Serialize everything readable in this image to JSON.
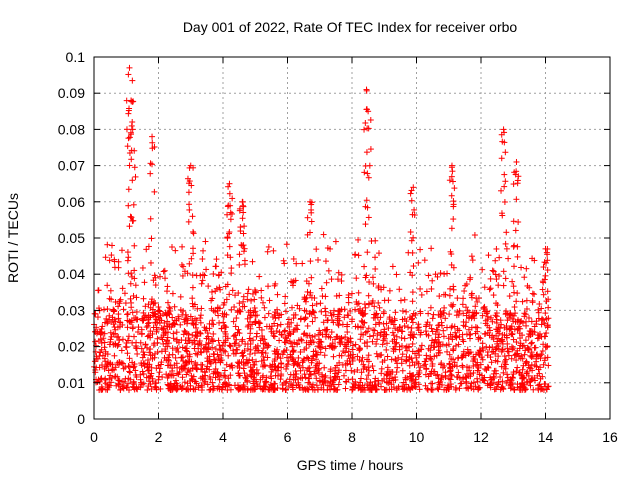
{
  "chart_data": {
    "type": "scatter",
    "title": "Day 001 of 2022, Rate Of TEC Index for receiver orbo",
    "xlabel": "GPS time / hours",
    "ylabel": "ROTI / TECUs",
    "xlim": [
      0,
      16
    ],
    "ylim": [
      0,
      0.1
    ],
    "xticks": [
      "0",
      "2",
      "4",
      "6",
      "8",
      "10",
      "12",
      "14",
      "16"
    ],
    "yticks": [
      "0",
      "0.01",
      "0.02",
      "0.03",
      "0.04",
      "0.05",
      "0.06",
      "0.07",
      "0.08",
      "0.09",
      "0.1"
    ],
    "grid": true,
    "marker": "+",
    "color": "#ff0000",
    "series": [
      {
        "x_range": [
          0.0,
          14.1
        ],
        "baseline_range": [
          0.008,
          0.03
        ],
        "peaks": [
          {
            "x": 1.1,
            "y": 0.097
          },
          {
            "x": 1.15,
            "y": 0.088
          },
          {
            "x": 1.2,
            "y": 0.08
          },
          {
            "x": 1.8,
            "y": 0.078
          },
          {
            "x": 3.0,
            "y": 0.07
          },
          {
            "x": 4.2,
            "y": 0.065
          },
          {
            "x": 4.6,
            "y": 0.06
          },
          {
            "x": 6.7,
            "y": 0.06
          },
          {
            "x": 8.45,
            "y": 0.091
          },
          {
            "x": 8.5,
            "y": 0.085
          },
          {
            "x": 9.9,
            "y": 0.064
          },
          {
            "x": 11.1,
            "y": 0.07
          },
          {
            "x": 12.7,
            "y": 0.08
          },
          {
            "x": 13.1,
            "y": 0.071
          },
          {
            "x": 14.0,
            "y": 0.047
          }
        ]
      }
    ]
  }
}
